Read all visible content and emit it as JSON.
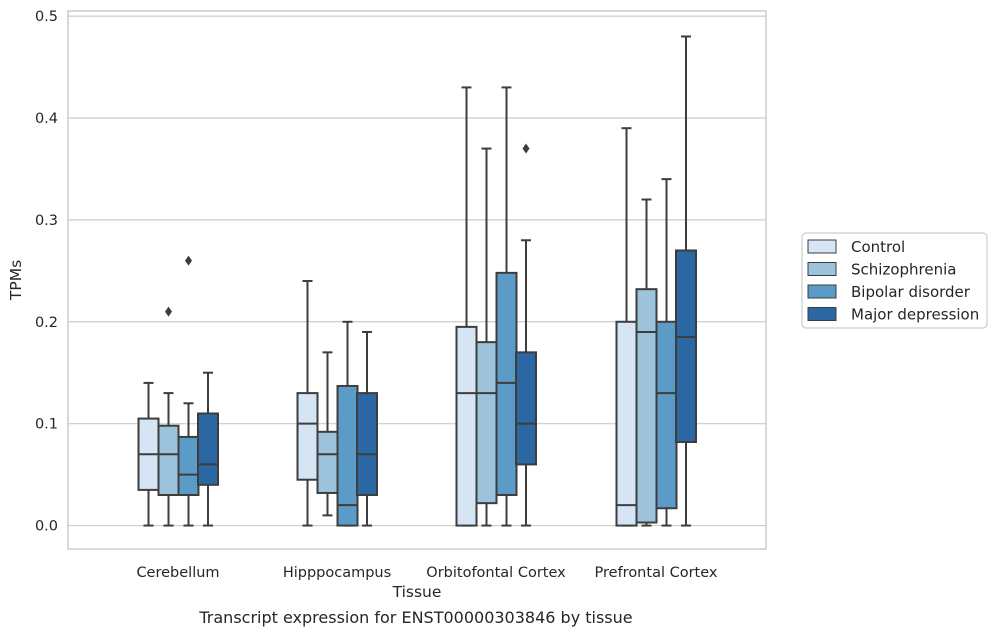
{
  "chart_data": {
    "type": "box",
    "title": "",
    "caption": "Transcript expression for ENST00000303846 by tissue",
    "xlabel": "Tissue",
    "ylabel": "TPMs",
    "ylim": [
      -0.023,
      0.505
    ],
    "yticks": [
      0.0,
      0.1,
      0.2,
      0.3,
      0.4,
      0.5
    ],
    "ytick_labels": [
      "0.0",
      "0.1",
      "0.2",
      "0.3",
      "0.4",
      "0.5"
    ],
    "grid": "horizontal",
    "legend_position": "right",
    "categories": [
      "Cerebellum",
      "Hipppocampus",
      "Orbitofontal Cortex",
      "Prefrontal Cortex"
    ],
    "series": [
      {
        "name": "Control",
        "color": "#d5e5f3",
        "boxes": [
          {
            "whislo": 0.0,
            "q1": 0.035,
            "med": 0.07,
            "q3": 0.105,
            "whishi": 0.14,
            "fliers": []
          },
          {
            "whislo": 0.0,
            "q1": 0.045,
            "med": 0.1,
            "q3": 0.13,
            "whishi": 0.24,
            "fliers": []
          },
          {
            "whislo": 0.0,
            "q1": 0.0,
            "med": 0.13,
            "q3": 0.195,
            "whishi": 0.43,
            "fliers": []
          },
          {
            "whislo": 0.0,
            "q1": 0.0,
            "med": 0.02,
            "q3": 0.2,
            "whishi": 0.39,
            "fliers": []
          }
        ]
      },
      {
        "name": "Schizophrenia",
        "color": "#9dc3dc",
        "boxes": [
          {
            "whislo": 0.0,
            "q1": 0.03,
            "med": 0.07,
            "q3": 0.098,
            "whishi": 0.13,
            "fliers": [
              0.21
            ]
          },
          {
            "whislo": 0.01,
            "q1": 0.032,
            "med": 0.07,
            "q3": 0.092,
            "whishi": 0.17,
            "fliers": []
          },
          {
            "whislo": 0.0,
            "q1": 0.022,
            "med": 0.13,
            "q3": 0.18,
            "whishi": 0.37,
            "fliers": []
          },
          {
            "whislo": 0.0,
            "q1": 0.003,
            "med": 0.19,
            "q3": 0.232,
            "whishi": 0.32,
            "fliers": []
          }
        ]
      },
      {
        "name": "Bipolar disorder",
        "color": "#5b9bc8",
        "boxes": [
          {
            "whislo": 0.0,
            "q1": 0.03,
            "med": 0.05,
            "q3": 0.087,
            "whishi": 0.12,
            "fliers": [
              0.26
            ]
          },
          {
            "whislo": 0.0,
            "q1": 0.0,
            "med": 0.02,
            "q3": 0.137,
            "whishi": 0.2,
            "fliers": []
          },
          {
            "whislo": 0.0,
            "q1": 0.03,
            "med": 0.14,
            "q3": 0.248,
            "whishi": 0.43,
            "fliers": []
          },
          {
            "whislo": 0.0,
            "q1": 0.017,
            "med": 0.13,
            "q3": 0.2,
            "whishi": 0.34,
            "fliers": []
          }
        ]
      },
      {
        "name": "Major depression",
        "color": "#2a67a3",
        "boxes": [
          {
            "whislo": 0.0,
            "q1": 0.04,
            "med": 0.06,
            "q3": 0.11,
            "whishi": 0.15,
            "fliers": []
          },
          {
            "whislo": 0.0,
            "q1": 0.03,
            "med": 0.07,
            "q3": 0.13,
            "whishi": 0.19,
            "fliers": []
          },
          {
            "whislo": 0.0,
            "q1": 0.06,
            "med": 0.1,
            "q3": 0.17,
            "whishi": 0.28,
            "fliers": [
              0.37
            ]
          },
          {
            "whislo": 0.0,
            "q1": 0.082,
            "med": 0.185,
            "q3": 0.27,
            "whishi": 0.48,
            "fliers": []
          }
        ]
      }
    ]
  }
}
